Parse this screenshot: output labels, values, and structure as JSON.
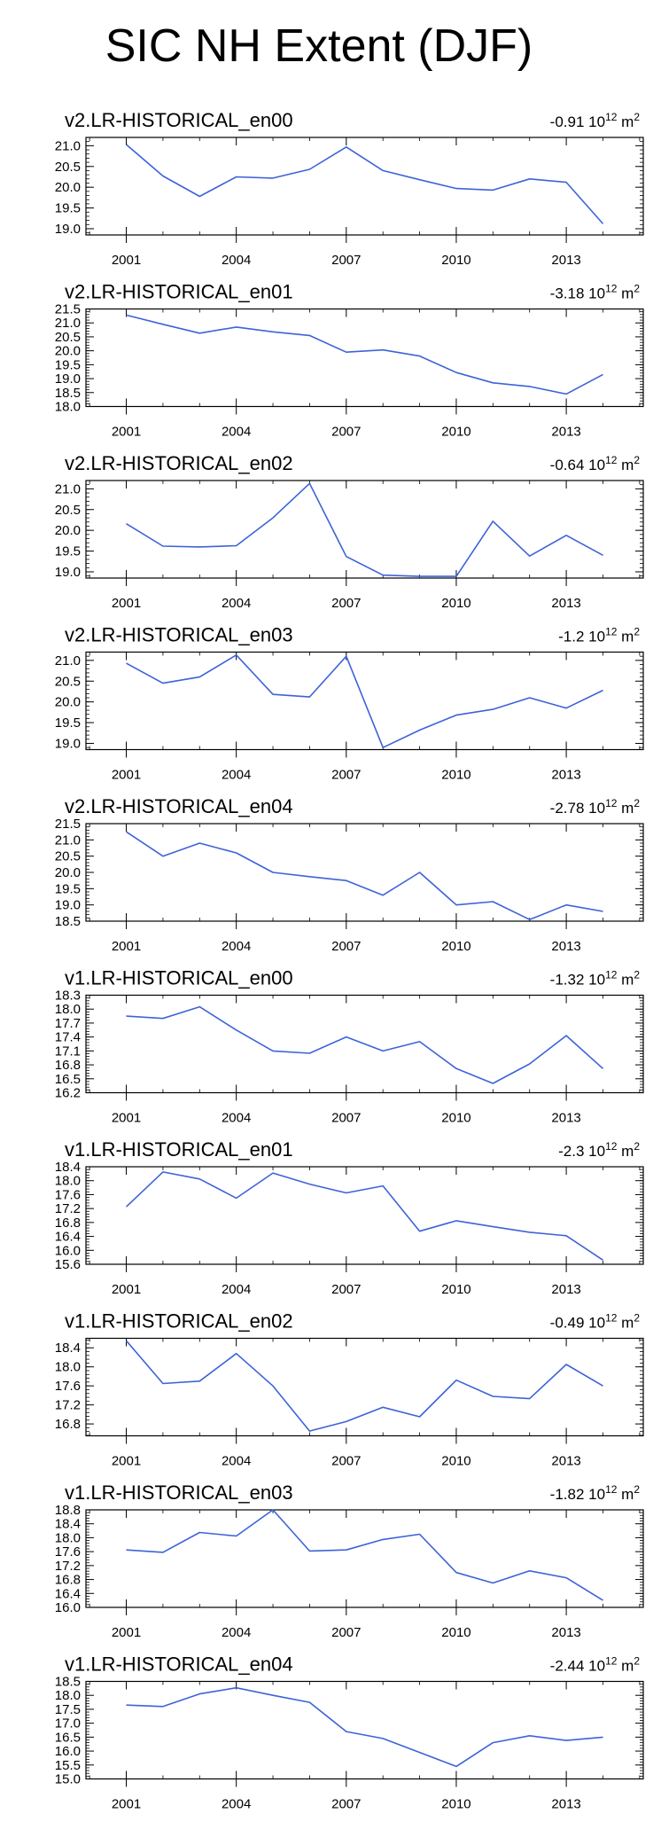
{
  "page": {
    "title": "SIC NH Extent (DJF)"
  },
  "chart_data": [
    {
      "type": "line",
      "title": "v2.LR-HISTORICAL_en00",
      "trend": "-0.91",
      "trend_unit": "10",
      "trend_exp": "12",
      "trend_tail": "m",
      "trend_tail_exp": "2",
      "x": [
        2001,
        2002,
        2003,
        2004,
        2005,
        2006,
        2007,
        2008,
        2009,
        2010,
        2011,
        2012,
        2013,
        2014
      ],
      "xticks": [
        2001,
        2004,
        2007,
        2010,
        2013
      ],
      "xlim": [
        1999.9,
        2015.1
      ],
      "ylim": [
        18.85,
        21.2
      ],
      "yticks": [
        "19.0",
        "19.5",
        "20.0",
        "20.5",
        "21.0"
      ],
      "series": [
        {
          "values": [
            21.03,
            20.27,
            19.78,
            20.25,
            20.22,
            20.43,
            20.97,
            20.4,
            20.18,
            19.97,
            19.93,
            20.2,
            20.12,
            19.12
          ]
        }
      ]
    },
    {
      "type": "line",
      "title": "v2.LR-HISTORICAL_en01",
      "trend": "-3.18",
      "trend_unit": "10",
      "trend_exp": "12",
      "trend_tail": "m",
      "trend_tail_exp": "2",
      "x": [
        2001,
        2002,
        2003,
        2004,
        2005,
        2006,
        2007,
        2008,
        2009,
        2010,
        2011,
        2012,
        2013,
        2014
      ],
      "xticks": [
        2001,
        2004,
        2007,
        2010,
        2013
      ],
      "xlim": [
        1999.9,
        2015.1
      ],
      "ylim": [
        18.0,
        21.5
      ],
      "yticks": [
        "18.0",
        "18.5",
        "19.0",
        "19.5",
        "20.0",
        "20.5",
        "21.0",
        "21.5"
      ],
      "series": [
        {
          "values": [
            21.28,
            20.95,
            20.63,
            20.85,
            20.68,
            20.55,
            19.95,
            20.03,
            19.81,
            19.22,
            18.85,
            18.72,
            18.45,
            19.15
          ]
        }
      ]
    },
    {
      "type": "line",
      "title": "v2.LR-HISTORICAL_en02",
      "trend": "-0.64",
      "trend_unit": "10",
      "trend_exp": "12",
      "trend_tail": "m",
      "trend_tail_exp": "2",
      "x": [
        2001,
        2002,
        2003,
        2004,
        2005,
        2006,
        2007,
        2008,
        2009,
        2010,
        2011,
        2012,
        2013,
        2014
      ],
      "xticks": [
        2001,
        2004,
        2007,
        2010,
        2013
      ],
      "xlim": [
        1999.9,
        2015.1
      ],
      "ylim": [
        18.85,
        21.2
      ],
      "yticks": [
        "19.0",
        "19.5",
        "20.0",
        "20.5",
        "21.0"
      ],
      "series": [
        {
          "values": [
            20.16,
            19.62,
            19.6,
            19.63,
            20.3,
            21.13,
            19.37,
            18.92,
            18.89,
            18.89,
            20.22,
            19.38,
            19.88,
            19.4
          ]
        }
      ]
    },
    {
      "type": "line",
      "title": "v2.LR-HISTORICAL_en03",
      "trend": "-1.2",
      "trend_unit": "10",
      "trend_exp": "12",
      "trend_tail": "m",
      "trend_tail_exp": "2",
      "x": [
        2001,
        2002,
        2003,
        2004,
        2005,
        2006,
        2007,
        2008,
        2009,
        2010,
        2011,
        2012,
        2013,
        2014
      ],
      "xticks": [
        2001,
        2004,
        2007,
        2010,
        2013
      ],
      "xlim": [
        1999.9,
        2015.1
      ],
      "ylim": [
        18.85,
        21.2
      ],
      "yticks": [
        "19.0",
        "19.5",
        "20.0",
        "20.5",
        "21.0"
      ],
      "series": [
        {
          "values": [
            20.93,
            20.45,
            20.6,
            21.13,
            20.18,
            20.12,
            21.1,
            18.9,
            19.32,
            19.68,
            19.82,
            20.1,
            19.85,
            20.28
          ]
        }
      ]
    },
    {
      "type": "line",
      "title": "v2.LR-HISTORICAL_en04",
      "trend": "-2.78",
      "trend_unit": "10",
      "trend_exp": "12",
      "trend_tail": "m",
      "trend_tail_exp": "2",
      "x": [
        2001,
        2002,
        2003,
        2004,
        2005,
        2006,
        2007,
        2008,
        2009,
        2010,
        2011,
        2012,
        2013,
        2014
      ],
      "xticks": [
        2001,
        2004,
        2007,
        2010,
        2013
      ],
      "xlim": [
        1999.9,
        2015.1
      ],
      "ylim": [
        18.5,
        21.5
      ],
      "yticks": [
        "18.5",
        "19.0",
        "19.5",
        "20.0",
        "20.5",
        "21.0",
        "21.5"
      ],
      "series": [
        {
          "values": [
            21.25,
            20.5,
            20.9,
            20.6,
            20.0,
            19.87,
            19.75,
            19.3,
            20.0,
            19.0,
            19.1,
            18.55,
            19.0,
            18.8
          ]
        }
      ]
    },
    {
      "type": "line",
      "title": "v1.LR-HISTORICAL_en00",
      "trend": "-1.32",
      "trend_unit": "10",
      "trend_exp": "12",
      "trend_tail": "m",
      "trend_tail_exp": "2",
      "x": [
        2001,
        2002,
        2003,
        2004,
        2005,
        2006,
        2007,
        2008,
        2009,
        2010,
        2011,
        2012,
        2013,
        2014
      ],
      "xticks": [
        2001,
        2004,
        2007,
        2010,
        2013
      ],
      "xlim": [
        1999.9,
        2015.1
      ],
      "ylim": [
        16.2,
        18.3
      ],
      "yticks": [
        "16.2",
        "16.5",
        "16.8",
        "17.1",
        "17.4",
        "17.7",
        "18.0",
        "18.3"
      ],
      "series": [
        {
          "values": [
            17.85,
            17.8,
            18.05,
            17.55,
            17.1,
            17.05,
            17.4,
            17.1,
            17.3,
            16.72,
            16.4,
            16.82,
            17.43,
            16.72
          ]
        }
      ]
    },
    {
      "type": "line",
      "title": "v1.LR-HISTORICAL_en01",
      "trend": "-2.3",
      "trend_unit": "10",
      "trend_exp": "12",
      "trend_tail": "m",
      "trend_tail_exp": "2",
      "x": [
        2001,
        2002,
        2003,
        2004,
        2005,
        2006,
        2007,
        2008,
        2009,
        2010,
        2011,
        2012,
        2013,
        2014
      ],
      "xticks": [
        2001,
        2004,
        2007,
        2010,
        2013
      ],
      "xlim": [
        1999.9,
        2015.1
      ],
      "ylim": [
        15.6,
        18.4
      ],
      "yticks": [
        "15.6",
        "16.0",
        "16.4",
        "16.8",
        "17.2",
        "17.6",
        "18.0",
        "18.4"
      ],
      "series": [
        {
          "values": [
            17.25,
            18.25,
            18.05,
            17.5,
            18.22,
            17.9,
            17.65,
            17.85,
            16.55,
            16.85,
            16.68,
            16.52,
            16.42,
            15.72
          ]
        }
      ]
    },
    {
      "type": "line",
      "title": "v1.LR-HISTORICAL_en02",
      "trend": "-0.49",
      "trend_unit": "10",
      "trend_exp": "12",
      "trend_tail": "m",
      "trend_tail_exp": "2",
      "x": [
        2001,
        2002,
        2003,
        2004,
        2005,
        2006,
        2007,
        2008,
        2009,
        2010,
        2011,
        2012,
        2013,
        2014
      ],
      "xticks": [
        2001,
        2004,
        2007,
        2010,
        2013
      ],
      "xlim": [
        1999.9,
        2015.1
      ],
      "ylim": [
        16.55,
        18.6
      ],
      "yticks": [
        "16.8",
        "17.2",
        "17.6",
        "18.0",
        "18.4"
      ],
      "series": [
        {
          "values": [
            18.55,
            17.65,
            17.7,
            18.28,
            17.6,
            16.65,
            16.85,
            17.15,
            16.95,
            17.72,
            17.38,
            17.33,
            18.05,
            17.6
          ]
        }
      ]
    },
    {
      "type": "line",
      "title": "v1.LR-HISTORICAL_en03",
      "trend": "-1.82",
      "trend_unit": "10",
      "trend_exp": "12",
      "trend_tail": "m",
      "trend_tail_exp": "2",
      "x": [
        2001,
        2002,
        2003,
        2004,
        2005,
        2006,
        2007,
        2008,
        2009,
        2010,
        2011,
        2012,
        2013,
        2014
      ],
      "xticks": [
        2001,
        2004,
        2007,
        2010,
        2013
      ],
      "xlim": [
        1999.9,
        2015.1
      ],
      "ylim": [
        16.0,
        18.8
      ],
      "yticks": [
        "16.0",
        "16.4",
        "16.8",
        "17.2",
        "17.6",
        "18.0",
        "18.4",
        "18.8"
      ],
      "series": [
        {
          "values": [
            17.65,
            17.58,
            18.15,
            18.05,
            18.8,
            17.62,
            17.65,
            17.95,
            18.1,
            17.0,
            16.7,
            17.05,
            16.85,
            16.2
          ]
        }
      ]
    },
    {
      "type": "line",
      "title": "v1.LR-HISTORICAL_en04",
      "trend": "-2.44",
      "trend_unit": "10",
      "trend_exp": "12",
      "trend_tail": "m",
      "trend_tail_exp": "2",
      "x": [
        2001,
        2002,
        2003,
        2004,
        2005,
        2006,
        2007,
        2008,
        2009,
        2010,
        2011,
        2012,
        2013,
        2014
      ],
      "xticks": [
        2001,
        2004,
        2007,
        2010,
        2013
      ],
      "xlim": [
        1999.9,
        2015.1
      ],
      "ylim": [
        15.0,
        18.5
      ],
      "yticks": [
        "15.0",
        "15.5",
        "16.0",
        "16.5",
        "17.0",
        "17.5",
        "18.0",
        "18.5"
      ],
      "series": [
        {
          "values": [
            17.65,
            17.6,
            18.05,
            18.27,
            18.0,
            17.75,
            16.7,
            16.45,
            15.95,
            15.45,
            16.3,
            16.55,
            16.38,
            16.5
          ]
        }
      ]
    }
  ],
  "colors": {
    "line": "#3d63d8",
    "axis": "#000000"
  }
}
